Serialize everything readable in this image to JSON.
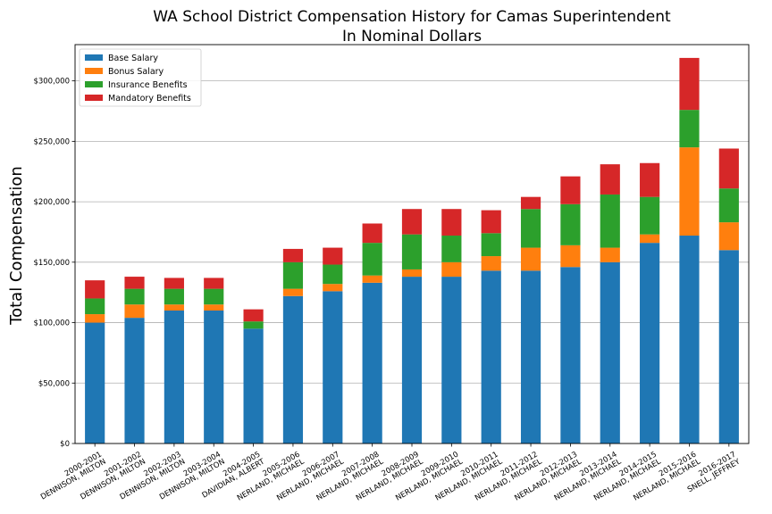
{
  "chart_data": {
    "type": "bar",
    "stacked": true,
    "title": "WA School District Compensation History for Camas Superintendent",
    "subtitle": "In Nominal Dollars",
    "ylabel": "Total Compensation",
    "xlabel": "",
    "ylim": [
      0,
      330000
    ],
    "yticks": [
      0,
      50000,
      100000,
      150000,
      200000,
      250000,
      300000
    ],
    "ytick_labels": [
      "$0",
      "$50,000",
      "$100,000",
      "$150,000",
      "$200,000",
      "$250,000",
      "$300,000"
    ],
    "grid": "horizontal",
    "legend_position": "top-left",
    "categories": [
      [
        "2000-2001",
        "DENNISON, MILTON"
      ],
      [
        "2001-2002",
        "DENNISON, MILTON"
      ],
      [
        "2002-2003",
        "DENNISON, MILTON"
      ],
      [
        "2003-2004",
        "DENNISON, MILTON"
      ],
      [
        "2004-2005",
        "DAVIDIAN, ALBERT"
      ],
      [
        "2005-2006",
        "NERLAND, MICHAEL"
      ],
      [
        "2006-2007",
        "NERLAND, MICHAEL"
      ],
      [
        "2007-2008",
        "NERLAND, MICHAEL"
      ],
      [
        "2008-2009",
        "NERLAND, MICHAEL"
      ],
      [
        "2009-2010",
        "NERLAND, MICHAEL"
      ],
      [
        "2010-2011",
        "NERLAND, MICHAEL"
      ],
      [
        "2011-2012",
        "NERLAND, MICHAEL"
      ],
      [
        "2012-2013",
        "NERLAND, MICHAEL"
      ],
      [
        "2013-2014",
        "NERLAND, MICHAEL"
      ],
      [
        "2014-2015",
        "NERLAND, MICHAEL"
      ],
      [
        "2015-2016",
        "NERLAND, MICHAEL"
      ],
      [
        "2016-2017",
        "SNELL, JEFFREY"
      ]
    ],
    "series": [
      {
        "name": "Base Salary",
        "color": "#1f77b4",
        "values": [
          100000,
          104000,
          110000,
          110000,
          95000,
          122000,
          126000,
          133000,
          138000,
          138000,
          143000,
          143000,
          146000,
          150000,
          166000,
          172000,
          160000
        ]
      },
      {
        "name": "Bonus Salary",
        "color": "#ff7f0e",
        "values": [
          7000,
          11000,
          5000,
          5000,
          0,
          6000,
          6000,
          6000,
          6000,
          12000,
          12000,
          19000,
          18000,
          12000,
          7000,
          73000,
          23000
        ]
      },
      {
        "name": "Insurance Benefits",
        "color": "#2ca02c",
        "values": [
          13000,
          13000,
          13000,
          13000,
          6000,
          22000,
          16000,
          27000,
          29000,
          22000,
          19000,
          32000,
          34000,
          44000,
          31000,
          31000,
          28000
        ]
      },
      {
        "name": "Mandatory Benefits",
        "color": "#d62728",
        "values": [
          15000,
          10000,
          9000,
          9000,
          10000,
          11000,
          14000,
          16000,
          21000,
          22000,
          19000,
          10000,
          23000,
          25000,
          28000,
          43000,
          33000
        ]
      }
    ]
  }
}
